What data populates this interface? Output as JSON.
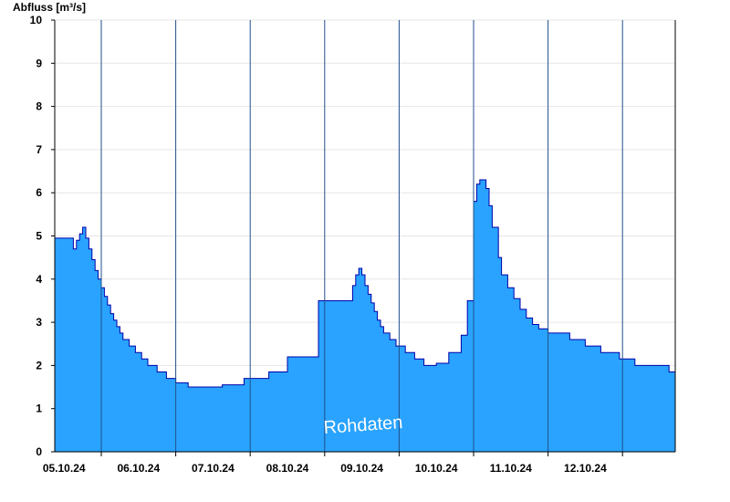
{
  "chart_data": {
    "type": "area",
    "ylabel": "Abfluss [m³/s]",
    "xlabel": "",
    "title": "",
    "ylim": [
      0,
      10
    ],
    "yticks": [
      0,
      1,
      2,
      3,
      4,
      5,
      6,
      7,
      8,
      9,
      10
    ],
    "x_range": [
      "2024-10-04T09:00",
      "2024-10-12T17:00"
    ],
    "x_tick_labels": [
      "05.10.24",
      "06.10.24",
      "07.10.24",
      "08.10.24",
      "09.10.24",
      "10.10.24",
      "11.10.24",
      "12.10.24"
    ],
    "grid": true,
    "fill_color": "#29a3ff",
    "line_color": "#0000aa",
    "watermark": "Rohdaten",
    "series": [
      {
        "x": [
          "2024-10-04T09:00",
          "2024-10-04T15:00",
          "2024-10-04T16:00",
          "2024-10-04T17:00",
          "2024-10-04T18:00",
          "2024-10-04T19:00",
          "2024-10-04T20:00",
          "2024-10-04T21:00",
          "2024-10-04T22:00",
          "2024-10-04T23:00",
          "2024-10-05T00:00",
          "2024-10-05T01:00",
          "2024-10-05T02:00",
          "2024-10-05T03:00",
          "2024-10-05T04:00",
          "2024-10-05T05:00",
          "2024-10-05T06:00",
          "2024-10-05T07:00",
          "2024-10-05T09:00",
          "2024-10-05T11:00",
          "2024-10-05T13:00",
          "2024-10-05T15:00",
          "2024-10-05T18:00",
          "2024-10-05T21:00",
          "2024-10-06T00:00",
          "2024-10-06T04:00",
          "2024-10-06T09:00",
          "2024-10-06T15:00",
          "2024-10-06T22:00",
          "2024-10-07T06:00",
          "2024-10-07T12:00",
          "2024-10-07T22:00",
          "2024-10-08T09:00",
          "2024-10-08T10:00",
          "2024-10-08T11:00",
          "2024-10-08T12:00",
          "2024-10-08T13:00",
          "2024-10-08T14:00",
          "2024-10-08T15:00",
          "2024-10-08T16:00",
          "2024-10-08T17:00",
          "2024-10-08T18:00",
          "2024-10-08T19:00",
          "2024-10-08T21:00",
          "2024-10-08T23:00",
          "2024-10-09T02:00",
          "2024-10-09T05:00",
          "2024-10-09T08:00",
          "2024-10-09T12:00",
          "2024-10-09T16:00",
          "2024-10-09T20:00",
          "2024-10-09T22:00",
          "2024-10-10T00:00",
          "2024-10-10T01:00",
          "2024-10-10T02:00",
          "2024-10-10T03:00",
          "2024-10-10T04:00",
          "2024-10-10T05:00",
          "2024-10-10T06:00",
          "2024-10-10T08:00",
          "2024-10-10T09:00",
          "2024-10-10T11:00",
          "2024-10-10T13:00",
          "2024-10-10T15:00",
          "2024-10-10T17:00",
          "2024-10-10T19:00",
          "2024-10-10T21:00",
          "2024-10-11T00:00",
          "2024-10-11T03:00",
          "2024-10-11T07:00",
          "2024-10-11T12:00",
          "2024-10-11T17:00",
          "2024-10-11T23:00",
          "2024-10-12T04:00",
          "2024-10-12T09:00",
          "2024-10-12T15:00",
          "2024-10-12T17:00"
        ],
        "values": [
          4.95,
          4.7,
          4.9,
          5.05,
          5.2,
          4.95,
          4.7,
          4.45,
          4.2,
          4.0,
          3.8,
          3.6,
          3.4,
          3.2,
          3.05,
          2.9,
          2.75,
          2.6,
          2.45,
          2.3,
          2.15,
          2.0,
          1.85,
          1.7,
          1.6,
          1.5,
          1.5,
          1.55,
          1.7,
          1.85,
          2.2,
          3.5,
          3.85,
          4.1,
          4.25,
          4.1,
          3.85,
          3.65,
          3.45,
          3.25,
          3.05,
          2.9,
          2.75,
          2.6,
          2.45,
          2.3,
          2.15,
          2.0,
          2.05,
          2.3,
          2.7,
          3.5,
          5.8,
          6.2,
          6.3,
          6.3,
          6.1,
          5.7,
          5.2,
          4.5,
          4.1,
          3.8,
          3.55,
          3.3,
          3.1,
          2.95,
          2.85,
          2.75,
          2.75,
          2.6,
          2.45,
          2.3,
          2.15,
          2.0,
          2.0,
          1.85,
          1.85
        ]
      }
    ]
  }
}
